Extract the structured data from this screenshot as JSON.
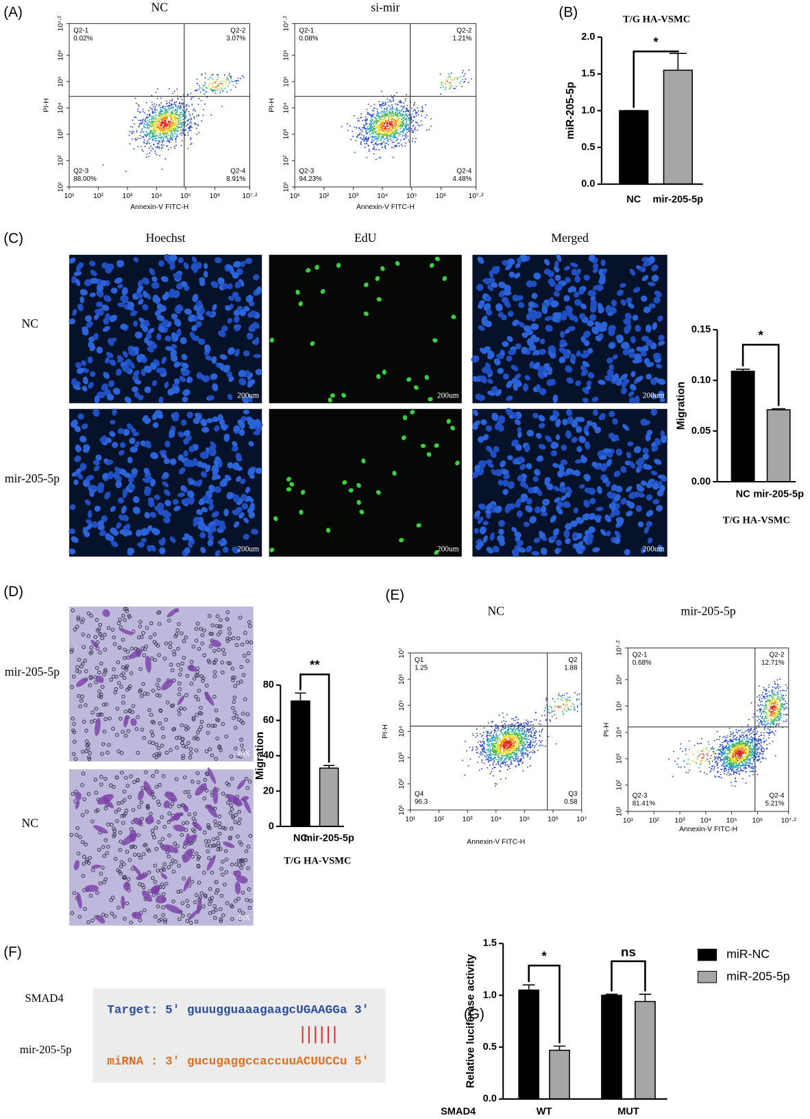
{
  "panels": [
    "(A)",
    "(B)",
    "(C)",
    "(D)",
    "(E)",
    "(F)",
    "(G)"
  ],
  "chart_data": [
    {
      "type": "flow",
      "title": "NC",
      "xlabel": "Annexin-V FITC-H",
      "ylabel": "PI-H",
      "log": true,
      "xlim": [
        10,
        15848932
      ],
      "ylim": [
        10,
        15848932
      ],
      "xticks": [
        {
          "value": 10,
          "label": "10¹"
        },
        {
          "value": 100,
          "label": "10²"
        },
        {
          "value": 1000,
          "label": "10³"
        },
        {
          "value": 10000,
          "label": "10⁴"
        },
        {
          "value": 100000,
          "label": "10⁵"
        },
        {
          "value": 1000000,
          "label": "10⁶"
        },
        {
          "value": 15848932,
          "label": "10⁷·²"
        }
      ],
      "yticks": [
        {
          "value": 10,
          "label": "10¹"
        },
        {
          "value": 100,
          "label": "10²"
        },
        {
          "value": 1000,
          "label": "10³"
        },
        {
          "value": 10000,
          "label": "10⁴"
        },
        {
          "value": 100000,
          "label": "10⁵"
        },
        {
          "value": 1000000,
          "label": "10⁶"
        },
        {
          "value": 15848932,
          "label": "10⁷·²"
        }
      ],
      "quadrant_x": 89000,
      "quadrant_y": 27500,
      "quadrants": [
        {
          "name": "Q2-1",
          "percent": "0.02%"
        },
        {
          "name": "Q2-2",
          "percent": "3.07%"
        },
        {
          "name": "Q2-3",
          "percent": "88.00%"
        },
        {
          "name": "Q2-4",
          "percent": "8.91%"
        }
      ]
    },
    {
      "type": "flow",
      "title": "si-mir",
      "xlabel": "Annexin-V FITC-H",
      "ylabel": "PI-H",
      "log": true,
      "xlim": [
        10,
        15848932
      ],
      "ylim": [
        10,
        15848932
      ],
      "xticks": [
        {
          "value": 10,
          "label": "10¹"
        },
        {
          "value": 100,
          "label": "10²"
        },
        {
          "value": 1000,
          "label": "10³"
        },
        {
          "value": 10000,
          "label": "10⁴"
        },
        {
          "value": 100000,
          "label": "10⁵"
        },
        {
          "value": 1000000,
          "label": "10⁶"
        },
        {
          "value": 15848932,
          "label": "10⁷·²"
        }
      ],
      "yticks": [
        {
          "value": 10,
          "label": "10¹"
        },
        {
          "value": 100,
          "label": "10²"
        },
        {
          "value": 1000,
          "label": "10³"
        },
        {
          "value": 10000,
          "label": "10⁴"
        },
        {
          "value": 100000,
          "label": "10⁵"
        },
        {
          "value": 1000000,
          "label": "10⁶"
        },
        {
          "value": 15848932,
          "label": "10⁷·²"
        }
      ],
      "quadrant_x": 89000,
      "quadrant_y": 27500,
      "quadrants": [
        {
          "name": "Q2-1",
          "percent": "0.08%"
        },
        {
          "name": "Q2-2",
          "percent": "1.21%"
        },
        {
          "name": "Q2-3",
          "percent": "94.23%"
        },
        {
          "name": "Q2-4",
          "percent": "4.48%"
        }
      ]
    },
    {
      "type": "bar",
      "title": "T/G HA-VSMC",
      "ylabel": "miR-205-5p",
      "categories": [
        "NC",
        "mir-205-5p"
      ],
      "values": [
        1.0,
        1.55
      ],
      "errors": [
        0,
        0.23
      ],
      "colors": [
        "#000000",
        "#a6a6a6"
      ],
      "ylim": [
        0,
        2
      ],
      "yticks": [
        {
          "value": 0,
          "label": "0.0"
        },
        {
          "value": 0.5,
          "label": "0.5"
        },
        {
          "value": 1,
          "label": "1.0"
        },
        {
          "value": 1.5,
          "label": "1.5"
        },
        {
          "value": 2,
          "label": "2.0"
        }
      ],
      "annotations": [
        "*"
      ]
    },
    {
      "type": "bar",
      "xlabel": "T/G HA-VSMC",
      "ylabel": "Migration",
      "categories": [
        "NC",
        "mir-205-5p"
      ],
      "values": [
        0.109,
        0.071
      ],
      "errors": [
        0.002,
        0.001
      ],
      "colors": [
        "#000000",
        "#a6a6a6"
      ],
      "ylim": [
        0,
        0.15
      ],
      "yticks": [
        {
          "value": 0,
          "label": "0.00"
        },
        {
          "value": 0.05,
          "label": "0.05"
        },
        {
          "value": 0.1,
          "label": "0.10"
        },
        {
          "value": 0.15,
          "label": "0.15"
        }
      ],
      "annotations": [
        "*"
      ]
    },
    {
      "type": "bar",
      "xlabel": "T/G HA-VSMC",
      "ylabel": "Migration",
      "categories": [
        "NC",
        "mir-205-5p"
      ],
      "values": [
        71,
        33
      ],
      "errors": [
        4.5,
        1.5
      ],
      "colors": [
        "#000000",
        "#a6a6a6"
      ],
      "ylim": [
        0,
        80
      ],
      "yticks": [
        0,
        20,
        40,
        60,
        80
      ],
      "annotations": [
        "**"
      ]
    },
    {
      "type": "flow",
      "title": "NC",
      "xlabel": "Annexin-V FITC-H",
      "ylabel": "PI-H",
      "log": true,
      "xlim": [
        10,
        10000000
      ],
      "ylim": [
        10,
        10000000
      ],
      "xticks": [
        {
          "value": 10,
          "label": "10¹"
        },
        {
          "value": 100,
          "label": "10²"
        },
        {
          "value": 1000,
          "label": "10³"
        },
        {
          "value": 10000,
          "label": "10⁴"
        },
        {
          "value": 100000,
          "label": "10⁵"
        },
        {
          "value": 1000000,
          "label": "10⁶"
        },
        {
          "value": 10000000,
          "label": "10⁷"
        }
      ],
      "yticks": [
        {
          "value": 10,
          "label": "10¹"
        },
        {
          "value": 100,
          "label": "10²"
        },
        {
          "value": 1000,
          "label": "10³"
        },
        {
          "value": 10000,
          "label": "10⁴"
        },
        {
          "value": 100000,
          "label": "10⁵"
        },
        {
          "value": 1000000,
          "label": "10⁶"
        },
        {
          "value": 10000000,
          "label": "10⁷"
        }
      ],
      "quadrant_x": 630000,
      "quadrant_y": 16000,
      "quadrants": [
        {
          "name": "Q1",
          "percent": "1.25"
        },
        {
          "name": "Q2",
          "percent": "1.88"
        },
        {
          "name": "Q4",
          "percent": "96.3"
        },
        {
          "name": "Q3",
          "percent": "0.58"
        }
      ]
    },
    {
      "type": "flow",
      "title": "mir-205-5p",
      "xlabel": "Annexin-V FITC-H",
      "ylabel": "PI-H",
      "log": true,
      "xlim": [
        10,
        15848932
      ],
      "ylim": [
        10,
        15848932
      ],
      "xticks": [
        {
          "value": 10,
          "label": "10¹"
        },
        {
          "value": 100,
          "label": "10²"
        },
        {
          "value": 1000,
          "label": "10³"
        },
        {
          "value": 10000,
          "label": "10⁴"
        },
        {
          "value": 100000,
          "label": "10⁵"
        },
        {
          "value": 1000000,
          "label": "10⁶"
        },
        {
          "value": 15848932,
          "label": "10⁷·²"
        }
      ],
      "yticks": [
        {
          "value": 10,
          "label": "10¹"
        },
        {
          "value": 100,
          "label": "10²"
        },
        {
          "value": 1000,
          "label": "10³"
        },
        {
          "value": 10000,
          "label": "10⁴"
        },
        {
          "value": 100000,
          "label": "10⁵"
        },
        {
          "value": 1000000,
          "label": "10⁶"
        },
        {
          "value": 15848932,
          "label": "10⁷·²"
        }
      ],
      "quadrant_x": 800000,
      "quadrant_y": 16000,
      "quadrants": [
        {
          "name": "Q2-1",
          "percent": "0.68%"
        },
        {
          "name": "Q2-2",
          "percent": "12.71%"
        },
        {
          "name": "Q2-3",
          "percent": "81.41%"
        },
        {
          "name": "Q2-4",
          "percent": "5.21%"
        }
      ]
    },
    {
      "type": "bar",
      "xlabel": "SMAD4",
      "ylabel": "Relative luciferase activity",
      "categories": [
        "WT",
        "MUT"
      ],
      "series": [
        {
          "name": "miR-NC",
          "color": "#000000",
          "values": [
            1.05,
            1.0
          ],
          "errors": [
            0.05,
            0.01
          ]
        },
        {
          "name": "miR-205-5p",
          "color": "#a6a6a6",
          "values": [
            0.47,
            0.94
          ],
          "errors": [
            0.04,
            0.07
          ]
        }
      ],
      "ylim": [
        0,
        1.5
      ],
      "yticks": [
        {
          "value": 0,
          "label": "0.0"
        },
        {
          "value": 0.5,
          "label": "0.5"
        },
        {
          "value": 1,
          "label": "1.0"
        },
        {
          "value": 1.5,
          "label": "1.5"
        }
      ],
      "annotations": [
        "*",
        "ns"
      ]
    }
  ],
  "edu_assay": {
    "columns": [
      "Hoechst",
      "EdU",
      "Merged"
    ],
    "rows": [
      "NC",
      "mir-205-5p"
    ],
    "scale_labels": [
      [
        "200um",
        "200um",
        "200um"
      ],
      [
        "200um",
        "200um",
        "200um"
      ]
    ]
  },
  "transwell": {
    "rows": [
      "mir-205-5p",
      "NC"
    ],
    "magnifications": [
      "40X",
      "40X"
    ]
  },
  "sequence": {
    "rows": [
      "SMAD4",
      "mir-205-5p"
    ],
    "target": "Target: 5' guuugguaaagaagcUGAAGGa 3'",
    "mirna": "miRNA : 3' gucugaggccaccuuACUUCCu 5'"
  }
}
